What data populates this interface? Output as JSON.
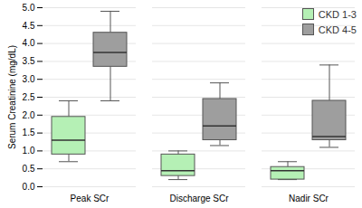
{
  "chart_data": {
    "type": "box",
    "categories": [
      "Peak SCr",
      "Discharge SCr",
      "Nadir SCr"
    ],
    "y_label": "Serum Creatinine (mg/dL)",
    "ylim": [
      0,
      5
    ],
    "yticks": [
      {
        "value": 0,
        "label": "0.0"
      },
      {
        "value": 0.5,
        "label": "0.5"
      },
      {
        "value": 1,
        "label": "1.0"
      },
      {
        "value": 1.5,
        "label": "1.5"
      },
      {
        "value": 2,
        "label": "2.0"
      },
      {
        "value": 2.5,
        "label": "2.5"
      },
      {
        "value": 3,
        "label": "3.0"
      },
      {
        "value": 3.5,
        "label": "3.5"
      },
      {
        "value": 4,
        "label": "4.0"
      },
      {
        "value": 4.5,
        "label": "4.5"
      },
      {
        "value": 5,
        "label": "5.0"
      }
    ],
    "grid": true,
    "legend": "top-right",
    "series": [
      {
        "name": "CKD 1-3",
        "color": "#b5f0b5",
        "min": [
          0.7,
          0.2,
          0.2
        ],
        "q1": [
          0.9,
          0.3,
          0.2
        ],
        "median": [
          1.3,
          0.45,
          0.45
        ],
        "q3": [
          1.95,
          0.9,
          0.55
        ],
        "max": [
          2.4,
          1.0,
          0.7
        ]
      },
      {
        "name": "CKD 4-5",
        "color": "#9e9e9e",
        "min": [
          2.4,
          1.15,
          1.1
        ],
        "q1": [
          3.35,
          1.3,
          1.3
        ],
        "median": [
          3.75,
          1.7,
          1.4
        ],
        "q3": [
          4.3,
          2.45,
          2.4
        ],
        "max": [
          4.9,
          2.9,
          3.4
        ]
      }
    ]
  }
}
